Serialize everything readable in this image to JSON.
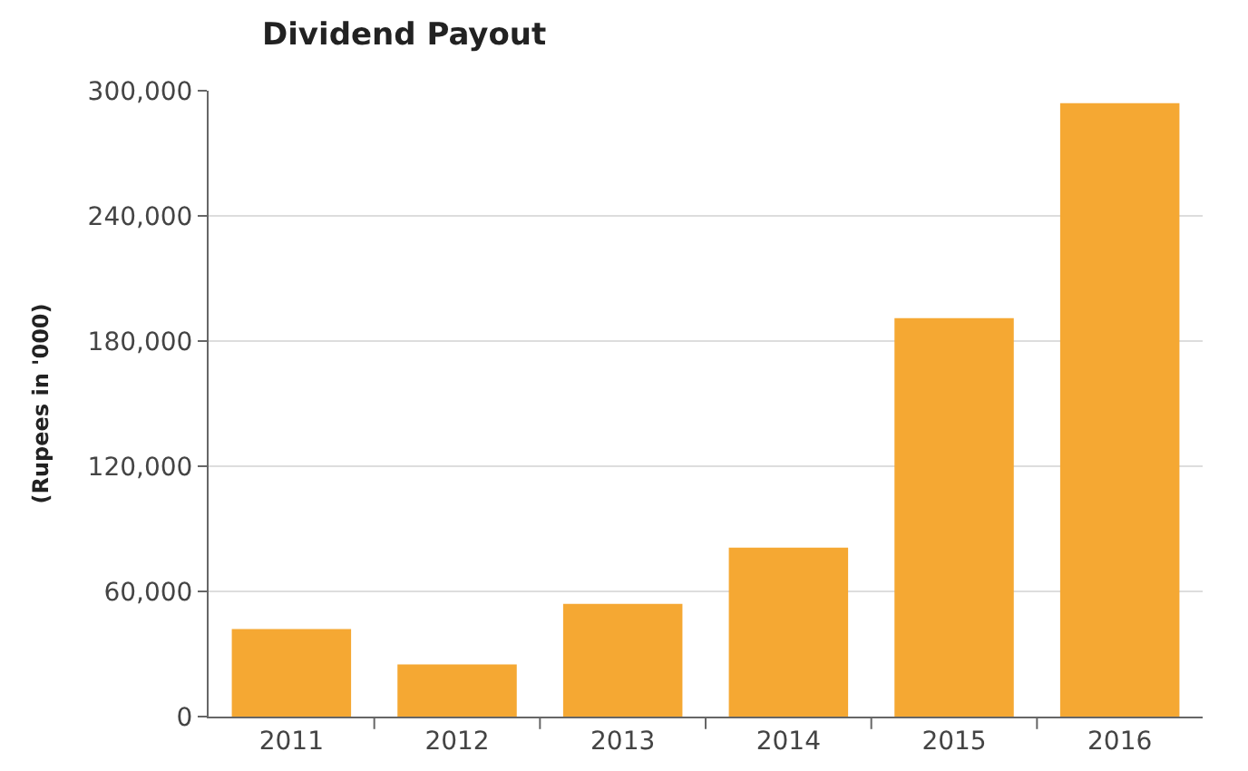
{
  "chart_data": {
    "type": "bar",
    "title": "Dividend Payout",
    "ylabel": "(Rupees in '000)",
    "categories": [
      "2011",
      "2012",
      "2013",
      "2014",
      "2015",
      "2016"
    ],
    "values": [
      42000,
      25000,
      54000,
      81000,
      191000,
      294000
    ],
    "color": "#f5a833",
    "ylim": [
      0,
      300000
    ],
    "yticks": [
      {
        "value": 0,
        "label": "0"
      },
      {
        "value": 60000,
        "label": "60,000"
      },
      {
        "value": 120000,
        "label": "120,000"
      },
      {
        "value": 180000,
        "label": "180,000"
      },
      {
        "value": 240000,
        "label": "240,000"
      },
      {
        "value": 300000,
        "label": "300,000"
      }
    ],
    "grid": "y"
  }
}
